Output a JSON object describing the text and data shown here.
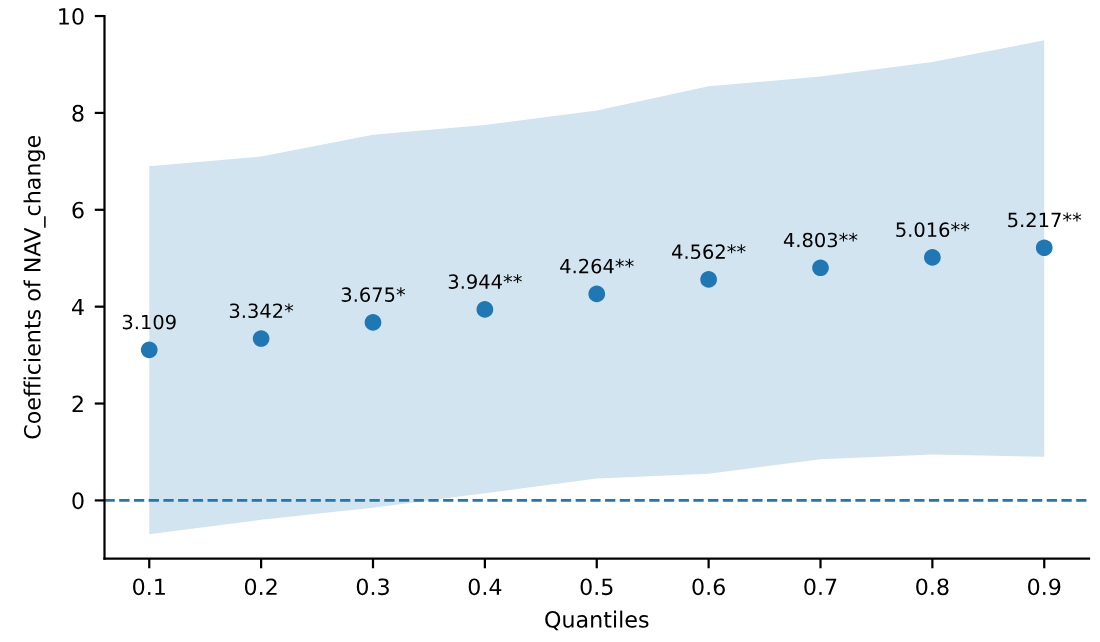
{
  "chart_data": {
    "type": "scatter",
    "xlabel": "Quantiles",
    "ylabel": "Coefficients of NAV_change",
    "x": [
      0.1,
      0.2,
      0.3,
      0.4,
      0.5,
      0.6,
      0.7,
      0.8,
      0.9
    ],
    "series": [
      {
        "color": "#1f77b4",
        "values": [
          3.109,
          3.342,
          3.675,
          3.944,
          4.264,
          4.562,
          4.803,
          5.016,
          5.217
        ],
        "lower": [
          -0.7,
          -0.4,
          -0.15,
          0.15,
          0.45,
          0.55,
          0.85,
          0.95,
          0.9
        ],
        "upper": [
          6.9,
          7.1,
          7.55,
          7.75,
          8.05,
          8.55,
          8.75,
          9.05,
          9.5
        ],
        "value_labels": [
          "3.109",
          "3.342*",
          "3.675*",
          "3.944**",
          "4.264**",
          "4.562**",
          "4.803**",
          "5.016**",
          "5.217**"
        ]
      }
    ],
    "ref_lines": [
      {
        "axis": "y",
        "value": 0,
        "color": "#1f77b4",
        "line_style": "dashed"
      }
    ],
    "xlim": [
      0.06,
      0.94
    ],
    "ylim": [
      -1.2,
      10
    ],
    "xticks": [
      0.1,
      0.2,
      0.3,
      0.4,
      0.5,
      0.6,
      0.7,
      0.8,
      0.9
    ],
    "yticks": [
      0,
      2,
      4,
      6,
      8,
      10
    ],
    "marker": "circle",
    "grid": false
  }
}
